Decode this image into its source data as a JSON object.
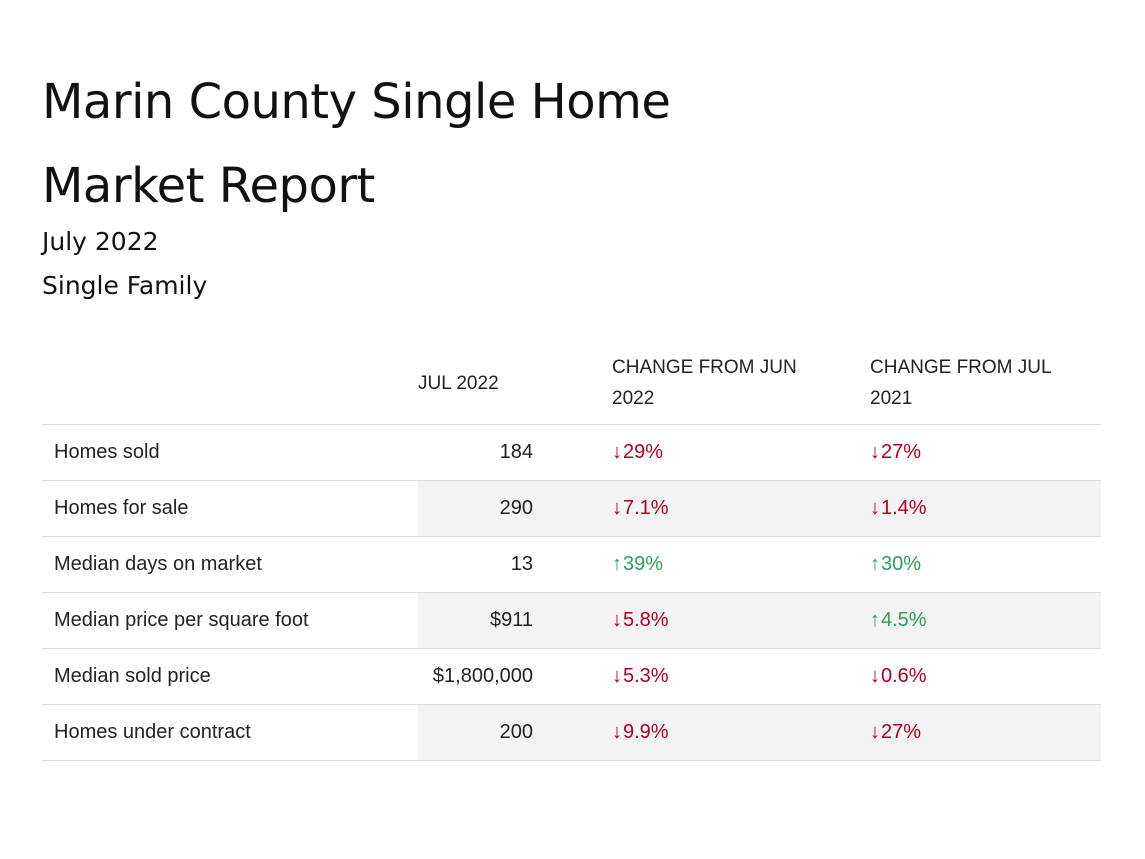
{
  "title": {
    "line1": "Marin County Single Home",
    "line2": "Market Report"
  },
  "subtitle": {
    "date": "July 2022",
    "type": "Single Family"
  },
  "colors": {
    "down": "#b00020",
    "up": "#2e9e5b",
    "row_shading": "#f3f3f3"
  },
  "table": {
    "headers": {
      "value": "JUL 2022",
      "change_jun": "CHANGE FROM JUN 2022",
      "change_jul": "CHANGE FROM JUL 2021"
    },
    "rows": [
      {
        "metric": "Homes sold",
        "value": "184",
        "change_jun": {
          "direction": "down",
          "arrow": "↓",
          "text": "29%"
        },
        "change_jul": {
          "direction": "down",
          "arrow": "↓",
          "text": "27%"
        }
      },
      {
        "metric": "Homes for sale",
        "value": "290",
        "change_jun": {
          "direction": "down",
          "arrow": "↓",
          "text": "7.1%"
        },
        "change_jul": {
          "direction": "down",
          "arrow": "↓",
          "text": "1.4%"
        }
      },
      {
        "metric": "Median days on market",
        "value": "13",
        "change_jun": {
          "direction": "up",
          "arrow": "↑",
          "text": "39%"
        },
        "change_jul": {
          "direction": "up",
          "arrow": "↑",
          "text": "30%"
        }
      },
      {
        "metric": "Median price per square foot",
        "value": "$911",
        "change_jun": {
          "direction": "down",
          "arrow": "↓",
          "text": "5.8%"
        },
        "change_jul": {
          "direction": "up",
          "arrow": "↑",
          "text": "4.5%"
        }
      },
      {
        "metric": "Median sold price",
        "value": "$1,800,000",
        "change_jun": {
          "direction": "down",
          "arrow": "↓",
          "text": "5.3%"
        },
        "change_jul": {
          "direction": "down",
          "arrow": "↓",
          "text": "0.6%"
        }
      },
      {
        "metric": "Homes under contract",
        "value": "200",
        "change_jun": {
          "direction": "down",
          "arrow": "↓",
          "text": "9.9%"
        },
        "change_jul": {
          "direction": "down",
          "arrow": "↓",
          "text": "27%"
        }
      }
    ]
  }
}
